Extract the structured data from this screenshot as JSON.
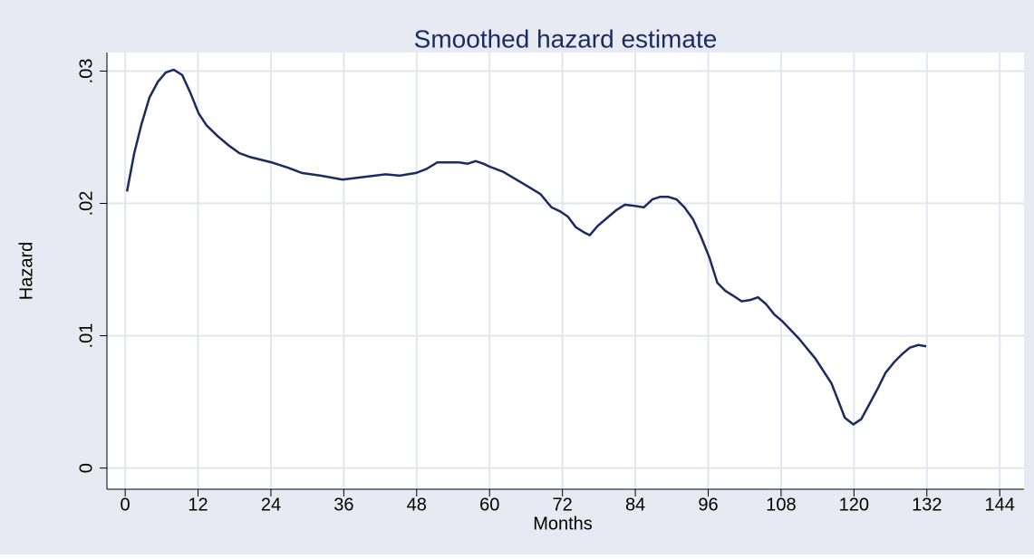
{
  "chart_data": {
    "type": "line",
    "title": "Smoothed hazard estimate",
    "x_label": "Months",
    "y_label": "Hazard",
    "xlim": [
      -3,
      148
    ],
    "ylim": [
      -0.0016,
      0.0314
    ],
    "xticks": [
      0,
      12,
      24,
      36,
      48,
      60,
      72,
      84,
      96,
      108,
      120,
      132,
      144
    ],
    "yticks": [
      0,
      {
        "value": 0.01,
        "label": ".01"
      },
      {
        "value": 0.02,
        "label": ".02"
      },
      {
        "value": 0.03,
        "label": ".03"
      }
    ],
    "grid": true,
    "series": [
      {
        "name": "Hazard",
        "color": "#1a2b5e",
        "x": [
          0.3,
          1.5,
          2.7,
          4.0,
          5.4,
          6.7,
          8.0,
          9.4,
          10.7,
          12.1,
          13.4,
          15.2,
          17.0,
          18.8,
          20.6,
          24.1,
          26.8,
          29.1,
          32.2,
          35.8,
          39.4,
          42.9,
          45.2,
          47.9,
          49.6,
          51.4,
          55.0,
          56.4,
          57.7,
          59.0,
          59.9,
          62.2,
          64.4,
          66.6,
          68.4,
          70.2,
          71.6,
          72.9,
          74.2,
          75.6,
          76.5,
          77.8,
          79.6,
          80.9,
          82.3,
          84.1,
          85.4,
          86.8,
          88.1,
          89.4,
          90.8,
          92.1,
          93.5,
          94.8,
          96.2,
          97.5,
          98.8,
          100.2,
          101.5,
          102.9,
          104.2,
          105.5,
          106.9,
          108.2,
          110.9,
          113.6,
          116.3,
          118.5,
          119.9,
          121.2,
          122.5,
          123.9,
          125.2,
          126.6,
          127.9,
          129.2,
          130.6,
          131.9
        ],
        "values": [
          0.0209,
          0.0238,
          0.026,
          0.028,
          0.0292,
          0.0299,
          0.0301,
          0.0297,
          0.0284,
          0.0268,
          0.0259,
          0.0251,
          0.0244,
          0.0238,
          0.0235,
          0.0231,
          0.0227,
          0.0223,
          0.0221,
          0.0218,
          0.022,
          0.0222,
          0.0221,
          0.0223,
          0.0226,
          0.0231,
          0.0231,
          0.023,
          0.0232,
          0.023,
          0.0228,
          0.0224,
          0.0218,
          0.0212,
          0.0207,
          0.0197,
          0.0194,
          0.019,
          0.0182,
          0.0178,
          0.0176,
          0.0183,
          0.019,
          0.0195,
          0.0199,
          0.0198,
          0.0197,
          0.0203,
          0.0205,
          0.0205,
          0.0203,
          0.0197,
          0.0188,
          0.0175,
          0.0159,
          0.014,
          0.0134,
          0.013,
          0.0126,
          0.0127,
          0.0129,
          0.0124,
          0.0116,
          0.0111,
          0.0098,
          0.0083,
          0.0064,
          0.0038,
          0.0033,
          0.0037,
          0.0048,
          0.006,
          0.0072,
          0.008,
          0.0086,
          0.0091,
          0.0093,
          0.0092
        ]
      }
    ]
  }
}
